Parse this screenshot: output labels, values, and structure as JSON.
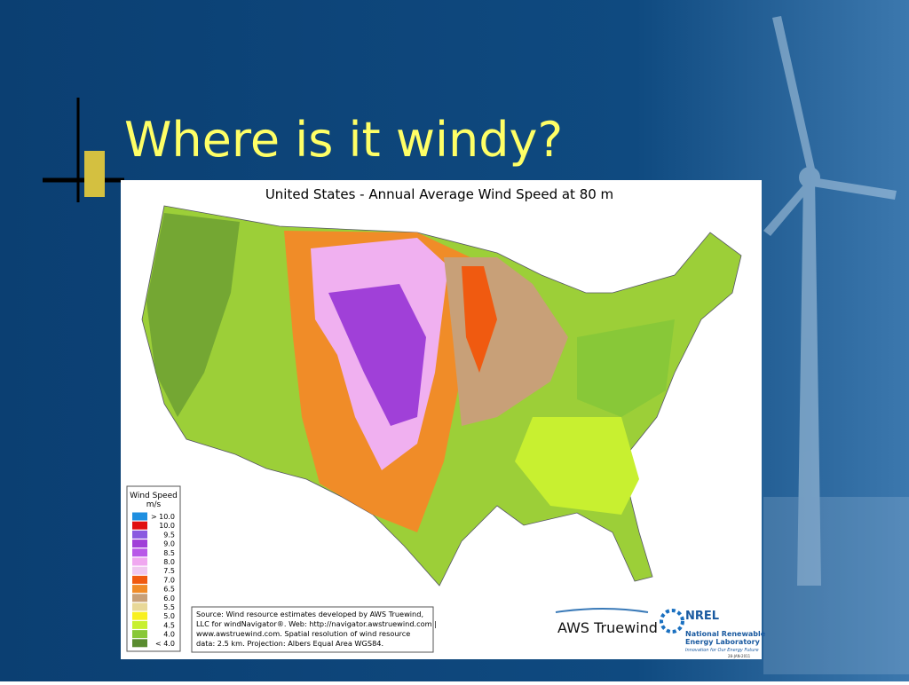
{
  "slide": {
    "title": "Where is it windy?"
  },
  "map": {
    "title": "United States - Annual Average Wind Speed at 80 m",
    "legend": {
      "title": "Wind Speed",
      "unit": "m/s",
      "items": [
        {
          "label": "> 10.0",
          "color": "#1f8fe0"
        },
        {
          "label": "10.0",
          "color": "#e01010"
        },
        {
          "label": "9.5",
          "color": "#8a5ae0"
        },
        {
          "label": "9.0",
          "color": "#a040d8"
        },
        {
          "label": "8.5",
          "color": "#b858e8"
        },
        {
          "label": "8.0",
          "color": "#f0a8f0"
        },
        {
          "label": "7.5",
          "color": "#f0c8f0"
        },
        {
          "label": "7.0",
          "color": "#f05a10"
        },
        {
          "label": "6.5",
          "color": "#f08c28"
        },
        {
          "label": "6.0",
          "color": "#c8a078"
        },
        {
          "label": "5.5",
          "color": "#e8d898"
        },
        {
          "label": "5.0",
          "color": "#f8f020"
        },
        {
          "label": "4.5",
          "color": "#c8f030"
        },
        {
          "label": "4.0",
          "color": "#88c838"
        },
        {
          "label": "< 4.0",
          "color": "#5a8c30"
        }
      ]
    },
    "source": [
      "Source: Wind resource estimates developed by AWS Truewind,",
      "LLC for windNavigator®. Web: http://navigator.awstruewind.com |",
      "www.awstruewind.com. Spatial resolution of wind resource",
      "data: 2.5 km. Projection: Albers Equal Area WGS84."
    ],
    "logos": {
      "aws": "AWS Truewind",
      "nrel": "NREL",
      "nrel_name": [
        "National Renewable",
        "Energy Laboratory"
      ],
      "nrel_tagline": "Innovation for Our Energy Future",
      "date": "28-JAN-2011"
    }
  }
}
